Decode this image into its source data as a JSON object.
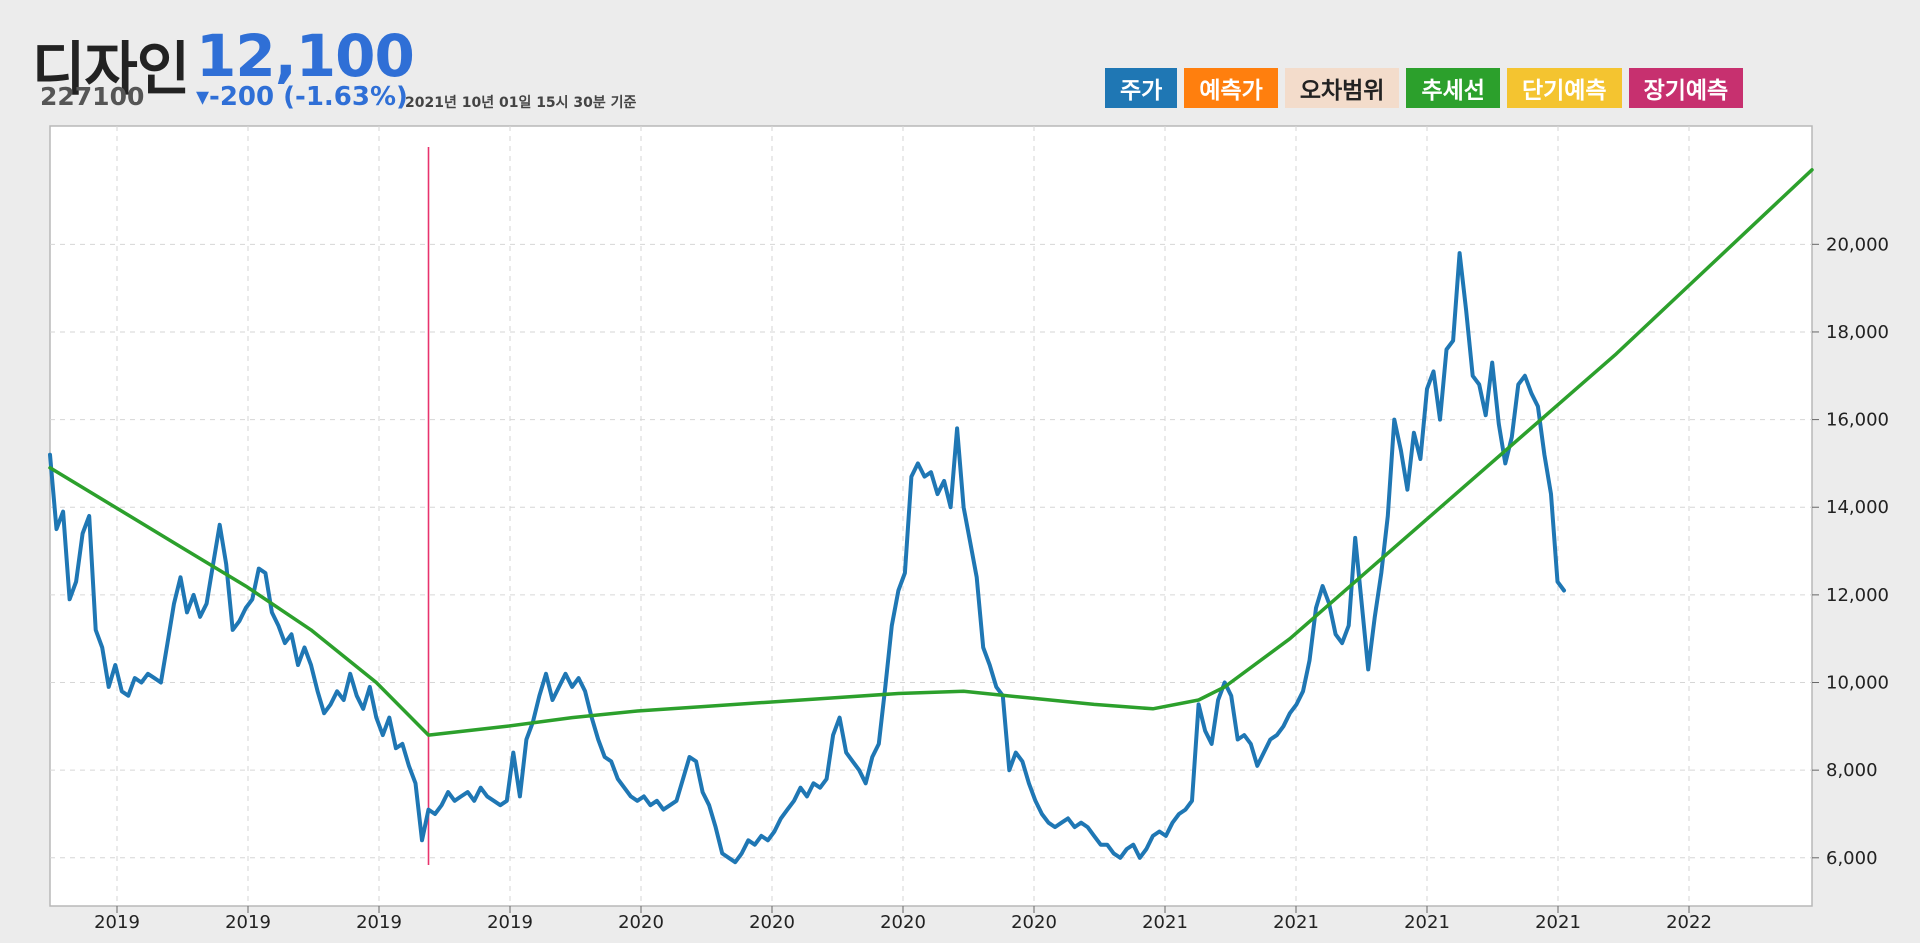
{
  "header": {
    "name": "디자인",
    "price": "12,100",
    "code": "227100",
    "change": "▾-200 (-1.63%)",
    "timestamp": "2021년 10년 01일 15시 30분 기준"
  },
  "legend": [
    {
      "label": "주가",
      "color": "#1f77b4"
    },
    {
      "label": "예측가",
      "color": "#ff7f0e"
    },
    {
      "label": "오차범위",
      "color": "#f3dccb"
    },
    {
      "label": "추세선",
      "color": "#2ca02c"
    },
    {
      "label": "단기예측",
      "color": "#f4c430"
    },
    {
      "label": "장기예측",
      "color": "#c7306f"
    }
  ],
  "chart_data": {
    "type": "line",
    "x_tick_labels": [
      "2019",
      "2019",
      "2019",
      "2019",
      "2020",
      "2020",
      "2020",
      "2020",
      "2021",
      "2021",
      "2021",
      "2021",
      "2022"
    ],
    "y_ticks": [
      6000,
      8000,
      10000,
      12000,
      14000,
      16000,
      18000,
      20000
    ],
    "y_tick_labels": [
      "6,000",
      "8,000",
      "10,000",
      "12,000",
      "14,000",
      "16,000",
      "18,000",
      "20,000"
    ],
    "ylim": [
      4900,
      22700
    ],
    "xlim": [
      0,
      1350
    ],
    "grid": true,
    "marker_x": 290,
    "series": [
      {
        "name": "주가",
        "color": "#1f77b4",
        "points": [
          [
            0,
            15200
          ],
          [
            5,
            13500
          ],
          [
            10,
            13900
          ],
          [
            15,
            11900
          ],
          [
            20,
            12300
          ],
          [
            25,
            13400
          ],
          [
            30,
            13800
          ],
          [
            35,
            11200
          ],
          [
            40,
            10800
          ],
          [
            45,
            9900
          ],
          [
            50,
            10400
          ],
          [
            55,
            9800
          ],
          [
            60,
            9700
          ],
          [
            65,
            10100
          ],
          [
            70,
            10000
          ],
          [
            75,
            10200
          ],
          [
            80,
            10100
          ],
          [
            85,
            10000
          ],
          [
            90,
            10900
          ],
          [
            95,
            11800
          ],
          [
            100,
            12400
          ],
          [
            105,
            11600
          ],
          [
            110,
            12000
          ],
          [
            115,
            11500
          ],
          [
            120,
            11800
          ],
          [
            125,
            12700
          ],
          [
            130,
            13600
          ],
          [
            135,
            12700
          ],
          [
            140,
            11200
          ],
          [
            145,
            11400
          ],
          [
            150,
            11700
          ],
          [
            155,
            11900
          ],
          [
            160,
            12600
          ],
          [
            165,
            12500
          ],
          [
            170,
            11600
          ],
          [
            175,
            11300
          ],
          [
            180,
            10900
          ],
          [
            185,
            11100
          ],
          [
            190,
            10400
          ],
          [
            195,
            10800
          ],
          [
            200,
            10400
          ],
          [
            205,
            9800
          ],
          [
            210,
            9300
          ],
          [
            215,
            9500
          ],
          [
            220,
            9800
          ],
          [
            225,
            9600
          ],
          [
            230,
            10200
          ],
          [
            235,
            9700
          ],
          [
            240,
            9400
          ],
          [
            245,
            9900
          ],
          [
            250,
            9200
          ],
          [
            255,
            8800
          ],
          [
            260,
            9200
          ],
          [
            265,
            8500
          ],
          [
            270,
            8600
          ],
          [
            275,
            8100
          ],
          [
            280,
            7700
          ],
          [
            285,
            6400
          ],
          [
            290,
            7100
          ],
          [
            295,
            7000
          ],
          [
            300,
            7200
          ],
          [
            305,
            7500
          ],
          [
            310,
            7300
          ],
          [
            315,
            7400
          ],
          [
            320,
            7500
          ],
          [
            325,
            7300
          ],
          [
            330,
            7600
          ],
          [
            335,
            7400
          ],
          [
            340,
            7300
          ],
          [
            345,
            7200
          ],
          [
            350,
            7300
          ],
          [
            355,
            8400
          ],
          [
            360,
            7400
          ],
          [
            365,
            8700
          ],
          [
            370,
            9100
          ],
          [
            375,
            9700
          ],
          [
            380,
            10200
          ],
          [
            385,
            9600
          ],
          [
            390,
            9900
          ],
          [
            395,
            10200
          ],
          [
            400,
            9900
          ],
          [
            405,
            10100
          ],
          [
            410,
            9800
          ],
          [
            415,
            9200
          ],
          [
            420,
            8700
          ],
          [
            425,
            8300
          ],
          [
            430,
            8200
          ],
          [
            435,
            7800
          ],
          [
            440,
            7600
          ],
          [
            445,
            7400
          ],
          [
            450,
            7300
          ],
          [
            455,
            7400
          ],
          [
            460,
            7200
          ],
          [
            465,
            7300
          ],
          [
            470,
            7100
          ],
          [
            475,
            7200
          ],
          [
            480,
            7300
          ],
          [
            485,
            7800
          ],
          [
            490,
            8300
          ],
          [
            495,
            8200
          ],
          [
            500,
            7500
          ],
          [
            505,
            7200
          ],
          [
            510,
            6700
          ],
          [
            515,
            6100
          ],
          [
            520,
            6000
          ],
          [
            525,
            5900
          ],
          [
            530,
            6100
          ],
          [
            535,
            6400
          ],
          [
            540,
            6300
          ],
          [
            545,
            6500
          ],
          [
            550,
            6400
          ],
          [
            555,
            6600
          ],
          [
            560,
            6900
          ],
          [
            565,
            7100
          ],
          [
            570,
            7300
          ],
          [
            575,
            7600
          ],
          [
            580,
            7400
          ],
          [
            585,
            7700
          ],
          [
            590,
            7600
          ],
          [
            595,
            7800
          ],
          [
            600,
            8800
          ],
          [
            605,
            9200
          ],
          [
            610,
            8400
          ],
          [
            615,
            8200
          ],
          [
            620,
            8000
          ],
          [
            625,
            7700
          ],
          [
            630,
            8300
          ],
          [
            635,
            8600
          ],
          [
            640,
            9900
          ],
          [
            645,
            11300
          ],
          [
            650,
            12100
          ],
          [
            655,
            12500
          ],
          [
            660,
            14700
          ],
          [
            665,
            15000
          ],
          [
            670,
            14700
          ],
          [
            675,
            14800
          ],
          [
            680,
            14300
          ],
          [
            685,
            14600
          ],
          [
            690,
            14000
          ],
          [
            695,
            15800
          ],
          [
            700,
            14000
          ],
          [
            705,
            13200
          ],
          [
            710,
            12400
          ],
          [
            715,
            10800
          ],
          [
            720,
            10400
          ],
          [
            725,
            9900
          ],
          [
            730,
            9700
          ],
          [
            735,
            8000
          ],
          [
            740,
            8400
          ],
          [
            745,
            8200
          ],
          [
            750,
            7700
          ],
          [
            755,
            7300
          ],
          [
            760,
            7000
          ],
          [
            765,
            6800
          ],
          [
            770,
            6700
          ],
          [
            775,
            6800
          ],
          [
            780,
            6900
          ],
          [
            785,
            6700
          ],
          [
            790,
            6800
          ],
          [
            795,
            6700
          ],
          [
            800,
            6500
          ],
          [
            805,
            6300
          ],
          [
            810,
            6300
          ],
          [
            815,
            6100
          ],
          [
            820,
            6000
          ],
          [
            825,
            6200
          ],
          [
            830,
            6300
          ],
          [
            835,
            6000
          ],
          [
            840,
            6200
          ],
          [
            845,
            6500
          ],
          [
            850,
            6600
          ],
          [
            855,
            6500
          ],
          [
            860,
            6800
          ],
          [
            865,
            7000
          ],
          [
            870,
            7100
          ],
          [
            875,
            7300
          ],
          [
            880,
            9500
          ],
          [
            885,
            8900
          ],
          [
            890,
            8600
          ],
          [
            895,
            9600
          ],
          [
            900,
            10000
          ],
          [
            905,
            9700
          ],
          [
            910,
            8700
          ],
          [
            915,
            8800
          ],
          [
            920,
            8600
          ],
          [
            925,
            8100
          ],
          [
            930,
            8400
          ],
          [
            935,
            8700
          ],
          [
            940,
            8800
          ],
          [
            945,
            9000
          ],
          [
            950,
            9300
          ],
          [
            955,
            9500
          ],
          [
            960,
            9800
          ],
          [
            965,
            10500
          ],
          [
            970,
            11700
          ],
          [
            975,
            12200
          ],
          [
            980,
            11800
          ],
          [
            985,
            11100
          ],
          [
            990,
            10900
          ],
          [
            995,
            11300
          ],
          [
            1000,
            13300
          ],
          [
            1005,
            11800
          ],
          [
            1010,
            10300
          ],
          [
            1015,
            11500
          ],
          [
            1020,
            12500
          ],
          [
            1025,
            13800
          ],
          [
            1030,
            16000
          ],
          [
            1035,
            15300
          ],
          [
            1040,
            14400
          ],
          [
            1045,
            15700
          ],
          [
            1050,
            15100
          ],
          [
            1055,
            16700
          ],
          [
            1060,
            17100
          ],
          [
            1065,
            16000
          ],
          [
            1070,
            17600
          ],
          [
            1075,
            17800
          ],
          [
            1080,
            19800
          ],
          [
            1085,
            18500
          ],
          [
            1090,
            17000
          ],
          [
            1095,
            16800
          ],
          [
            1100,
            16100
          ],
          [
            1105,
            17300
          ],
          [
            1110,
            15900
          ],
          [
            1115,
            15000
          ],
          [
            1120,
            15600
          ],
          [
            1125,
            16800
          ],
          [
            1130,
            17000
          ],
          [
            1135,
            16600
          ],
          [
            1140,
            16300
          ],
          [
            1145,
            15200
          ],
          [
            1150,
            14300
          ],
          [
            1155,
            12300
          ],
          [
            1160,
            12100
          ]
        ]
      },
      {
        "name": "추세선",
        "color": "#2ca02c",
        "points": [
          [
            0,
            14900
          ],
          [
            50,
            14000
          ],
          [
            100,
            13100
          ],
          [
            150,
            12200
          ],
          [
            200,
            11200
          ],
          [
            250,
            10000
          ],
          [
            290,
            8800
          ],
          [
            350,
            9000
          ],
          [
            400,
            9200
          ],
          [
            450,
            9350
          ],
          [
            500,
            9450
          ],
          [
            550,
            9550
          ],
          [
            600,
            9650
          ],
          [
            650,
            9750
          ],
          [
            700,
            9800
          ],
          [
            750,
            9650
          ],
          [
            800,
            9500
          ],
          [
            845,
            9400
          ],
          [
            880,
            9600
          ],
          [
            900,
            9900
          ],
          [
            950,
            11000
          ],
          [
            1000,
            12300
          ],
          [
            1050,
            13600
          ],
          [
            1100,
            14900
          ],
          [
            1150,
            16200
          ],
          [
            1200,
            17500
          ],
          [
            1250,
            18900
          ],
          [
            1300,
            20300
          ],
          [
            1350,
            21700
          ]
        ]
      }
    ]
  }
}
